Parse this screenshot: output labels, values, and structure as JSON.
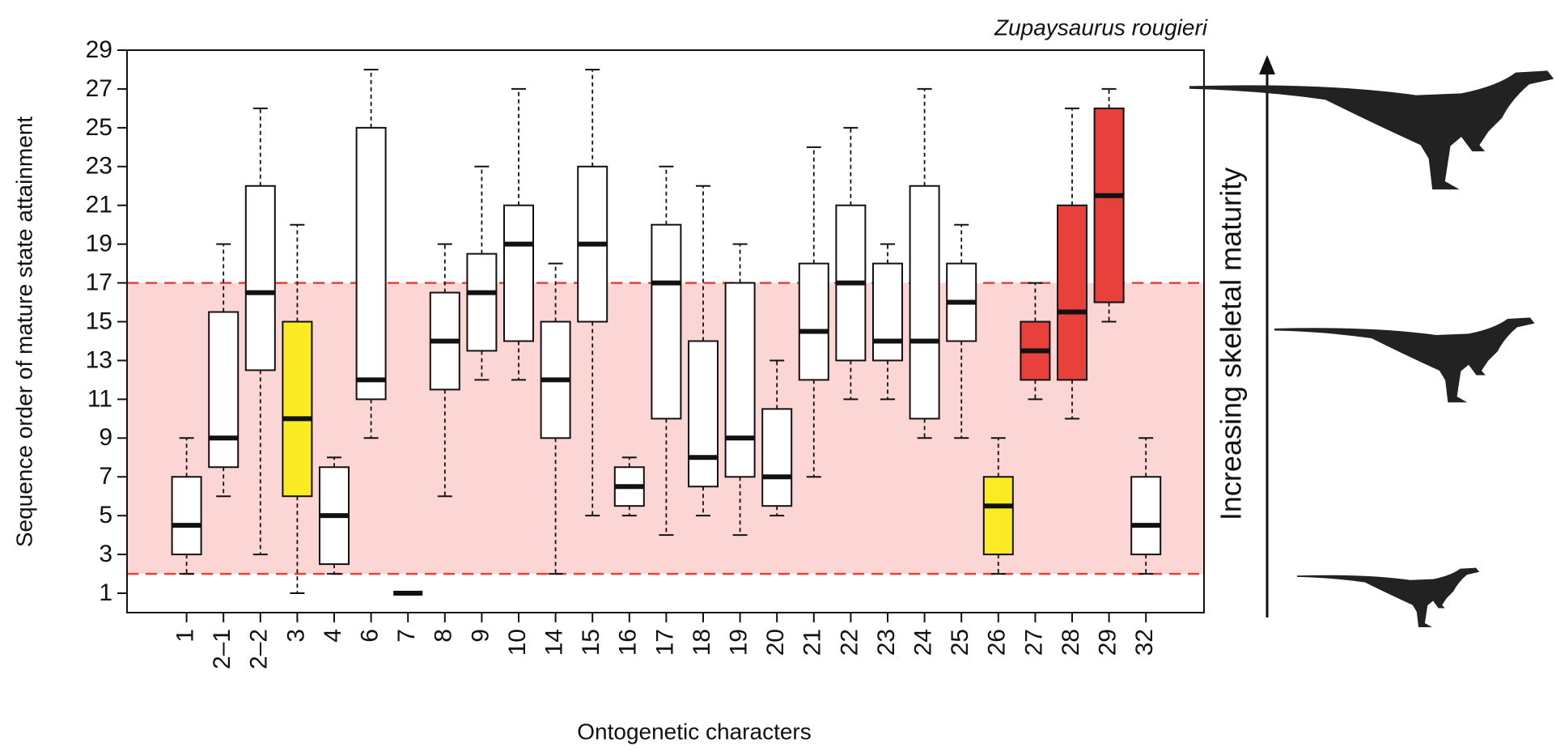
{
  "chart_data": {
    "type": "boxplot",
    "xlabel": "Ontogenetic characters",
    "ylabel": "Sequence order of mature state attainment",
    "annotation_species": "Zupaysaurus rougieri",
    "annotation_arrow": "Increasing skeletal maturity",
    "ylim": [
      0,
      29
    ],
    "yticks": [
      1,
      3,
      5,
      7,
      9,
      11,
      13,
      15,
      17,
      19,
      21,
      23,
      25,
      27,
      29
    ],
    "band": {
      "from": 2,
      "to": 17,
      "color": "#fbd6d4",
      "line_color": "#e8413c"
    },
    "categories": [
      "1",
      "2–1",
      "2–2",
      "3",
      "4",
      "6",
      "7",
      "8",
      "9",
      "10",
      "14",
      "15",
      "16",
      "17",
      "18",
      "19",
      "20",
      "21",
      "22",
      "23",
      "24",
      "25",
      "26",
      "27",
      "28",
      "29",
      "32"
    ],
    "boxes": [
      {
        "min": 2,
        "q1": 3,
        "median": 4.5,
        "q3": 7,
        "max": 9,
        "color": "#ffffff"
      },
      {
        "min": 6,
        "q1": 7.5,
        "median": 9,
        "q3": 15.5,
        "max": 19,
        "color": "#ffffff"
      },
      {
        "min": 3,
        "q1": 12.5,
        "median": 16.5,
        "q3": 22,
        "max": 26,
        "color": "#ffffff"
      },
      {
        "min": 1,
        "q1": 6,
        "median": 10,
        "q3": 15,
        "max": 20,
        "color": "#fbeb24"
      },
      {
        "min": 2,
        "q1": 2.5,
        "median": 5,
        "q3": 7.5,
        "max": 8,
        "color": "#ffffff"
      },
      {
        "min": 9,
        "q1": 11,
        "median": 12,
        "q3": 25,
        "max": 28,
        "color": "#ffffff"
      },
      {
        "min": 1,
        "q1": 1,
        "median": 1,
        "q3": 1,
        "max": 1,
        "color": "#ffffff"
      },
      {
        "min": 6,
        "q1": 11.5,
        "median": 14,
        "q3": 16.5,
        "max": 19,
        "color": "#ffffff"
      },
      {
        "min": 12,
        "q1": 13.5,
        "median": 16.5,
        "q3": 18.5,
        "max": 23,
        "color": "#ffffff"
      },
      {
        "min": 12,
        "q1": 14,
        "median": 19,
        "q3": 21,
        "max": 27,
        "color": "#ffffff"
      },
      {
        "min": 2,
        "q1": 9,
        "median": 12,
        "q3": 15,
        "max": 18,
        "color": "#ffffff"
      },
      {
        "min": 5,
        "q1": 15,
        "median": 19,
        "q3": 23,
        "max": 28,
        "color": "#ffffff"
      },
      {
        "min": 5,
        "q1": 5.5,
        "median": 6.5,
        "q3": 7.5,
        "max": 8,
        "color": "#ffffff"
      },
      {
        "min": 4,
        "q1": 10,
        "median": 17,
        "q3": 20,
        "max": 23,
        "color": "#ffffff"
      },
      {
        "min": 5,
        "q1": 6.5,
        "median": 8,
        "q3": 14,
        "max": 22,
        "color": "#ffffff"
      },
      {
        "min": 4,
        "q1": 7,
        "median": 9,
        "q3": 17,
        "max": 19,
        "color": "#ffffff"
      },
      {
        "min": 5,
        "q1": 5.5,
        "median": 7,
        "q3": 10.5,
        "max": 13,
        "color": "#ffffff"
      },
      {
        "min": 7,
        "q1": 12,
        "median": 14.5,
        "q3": 18,
        "max": 24,
        "color": "#ffffff"
      },
      {
        "min": 11,
        "q1": 13,
        "median": 17,
        "q3": 21,
        "max": 25,
        "color": "#ffffff"
      },
      {
        "min": 11,
        "q1": 13,
        "median": 14,
        "q3": 18,
        "max": 19,
        "color": "#ffffff"
      },
      {
        "min": 9,
        "q1": 10,
        "median": 14,
        "q3": 22,
        "max": 27,
        "color": "#ffffff"
      },
      {
        "min": 9,
        "q1": 14,
        "median": 16,
        "q3": 18,
        "max": 20,
        "color": "#ffffff"
      },
      {
        "min": 2,
        "q1": 3,
        "median": 5.5,
        "q3": 7,
        "max": 9,
        "color": "#fbeb24"
      },
      {
        "min": 11,
        "q1": 12,
        "median": 13.5,
        "q3": 15,
        "max": 17,
        "color": "#e8413c"
      },
      {
        "min": 10,
        "q1": 12,
        "median": 15.5,
        "q3": 21,
        "max": 26,
        "color": "#e8413c"
      },
      {
        "min": 15,
        "q1": 16,
        "median": 21.5,
        "q3": 26,
        "max": 27,
        "color": "#e8413c"
      },
      {
        "min": 2,
        "q1": 3,
        "median": 4.5,
        "q3": 7,
        "max": 9,
        "color": "#ffffff"
      }
    ]
  }
}
